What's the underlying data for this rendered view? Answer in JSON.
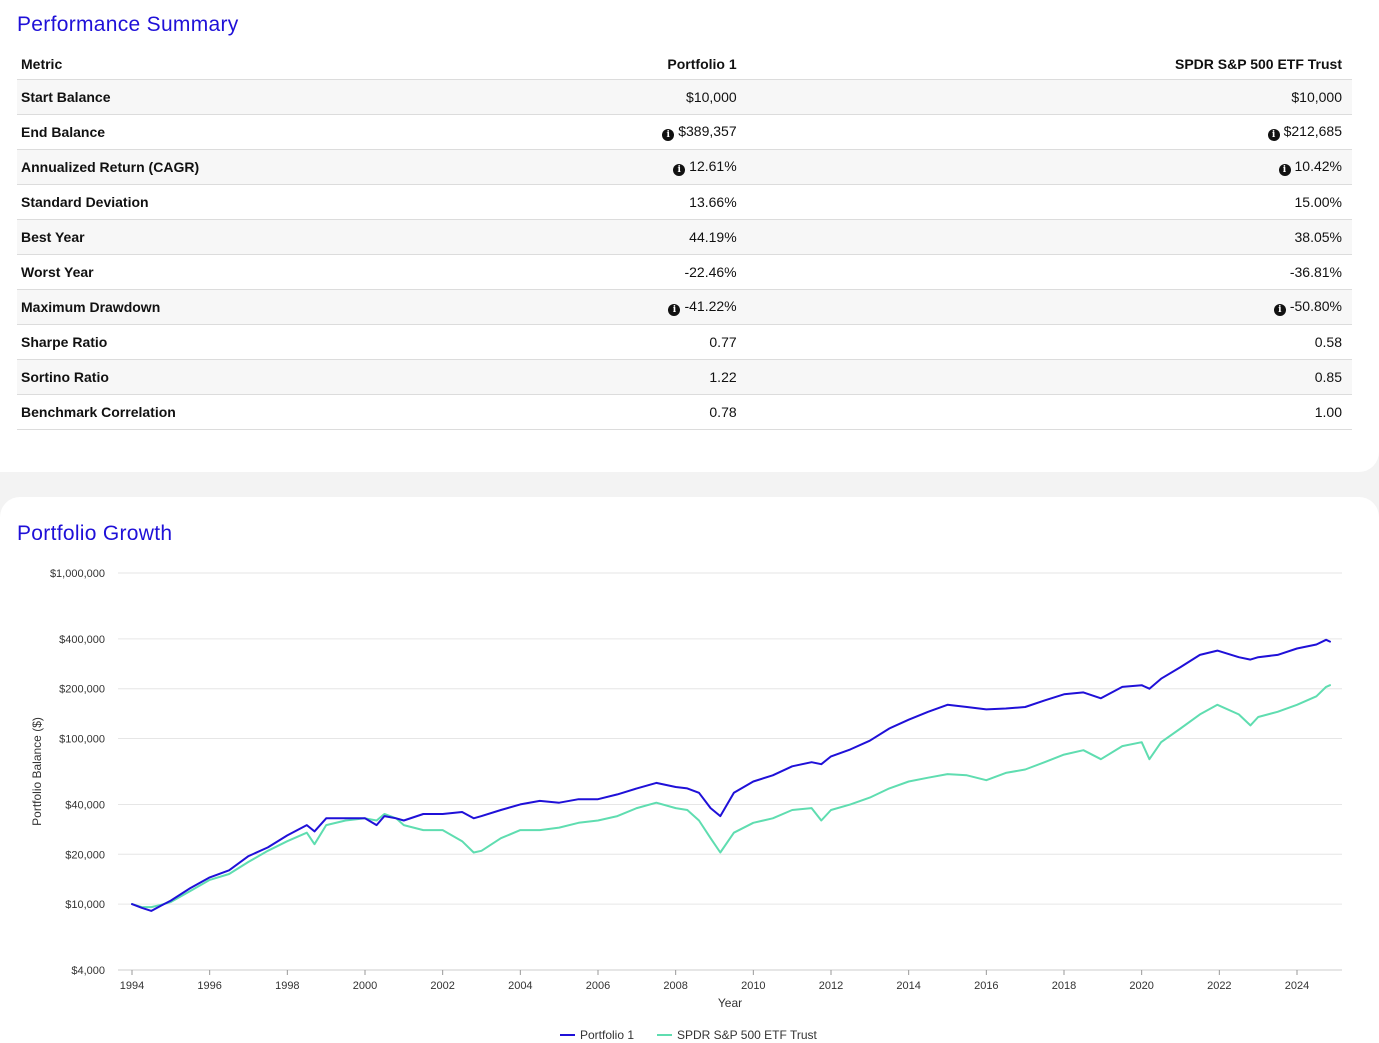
{
  "summary": {
    "title": "Performance Summary",
    "headers": [
      "Metric",
      "Portfolio 1",
      "SPDR S&P 500 ETF Trust"
    ],
    "rows": [
      {
        "metric": "Start Balance",
        "p1": "$10,000",
        "p1_info": false,
        "spy": "$10,000",
        "spy_info": false
      },
      {
        "metric": "End Balance",
        "p1": "$389,357",
        "p1_info": true,
        "spy": "$212,685",
        "spy_info": true
      },
      {
        "metric": "Annualized Return (CAGR)",
        "p1": "12.61%",
        "p1_info": true,
        "spy": "10.42%",
        "spy_info": true
      },
      {
        "metric": "Standard Deviation",
        "p1": "13.66%",
        "p1_info": false,
        "spy": "15.00%",
        "spy_info": false
      },
      {
        "metric": "Best Year",
        "p1": "44.19%",
        "p1_info": false,
        "spy": "38.05%",
        "spy_info": false
      },
      {
        "metric": "Worst Year",
        "p1": "-22.46%",
        "p1_info": false,
        "spy": "-36.81%",
        "spy_info": false
      },
      {
        "metric": "Maximum Drawdown",
        "p1": "-41.22%",
        "p1_info": true,
        "spy": "-50.80%",
        "spy_info": true
      },
      {
        "metric": "Sharpe Ratio",
        "p1": "0.77",
        "p1_info": false,
        "spy": "0.58",
        "spy_info": false
      },
      {
        "metric": "Sortino Ratio",
        "p1": "1.22",
        "p1_info": false,
        "spy": "0.85",
        "spy_info": false
      },
      {
        "metric": "Benchmark Correlation",
        "p1": "0.78",
        "p1_info": false,
        "spy": "1.00",
        "spy_info": false
      }
    ]
  },
  "growth": {
    "title": "Portfolio Growth"
  },
  "chart_data": {
    "type": "line",
    "title": "Portfolio Growth",
    "xlabel": "Year",
    "ylabel": "Portfolio Balance ($)",
    "y_scale": "log",
    "ylim": [
      4000,
      1000000
    ],
    "xlim": [
      1994,
      2025
    ],
    "y_ticks": [
      {
        "value": 1000000,
        "label": "$1,000,000"
      },
      {
        "value": 400000,
        "label": "$400,000"
      },
      {
        "value": 200000,
        "label": "$200,000"
      },
      {
        "value": 100000,
        "label": "$100,000"
      },
      {
        "value": 40000,
        "label": "$40,000"
      },
      {
        "value": 20000,
        "label": "$20,000"
      },
      {
        "value": 10000,
        "label": "$10,000"
      },
      {
        "value": 4000,
        "label": "$4,000"
      }
    ],
    "x_ticks": [
      "1994",
      "1996",
      "1998",
      "2000",
      "2002",
      "2004",
      "2006",
      "2008",
      "2010",
      "2012",
      "2014",
      "2016",
      "2018",
      "2020",
      "2022",
      "2024"
    ],
    "grid": true,
    "legend_position": "bottom-center",
    "series": [
      {
        "name": "Portfolio 1",
        "color": "#1f10d8",
        "x": [
          1994.0,
          1994.25,
          1994.5,
          1994.75,
          1995.0,
          1995.5,
          1996.0,
          1996.5,
          1997.0,
          1997.5,
          1998.0,
          1998.5,
          1998.7,
          1999.0,
          1999.5,
          2000.0,
          2000.3,
          2000.5,
          2000.8,
          2001.0,
          2001.5,
          2002.0,
          2002.5,
          2002.8,
          2003.0,
          2003.5,
          2004.0,
          2004.5,
          2005.0,
          2005.5,
          2006.0,
          2006.5,
          2007.0,
          2007.5,
          2008.0,
          2008.3,
          2008.6,
          2008.9,
          2009.15,
          2009.5,
          2010.0,
          2010.5,
          2011.0,
          2011.5,
          2011.75,
          2012.0,
          2012.5,
          2013.0,
          2013.5,
          2014.0,
          2014.5,
          2015.0,
          2015.5,
          2016.0,
          2016.5,
          2017.0,
          2017.5,
          2018.0,
          2018.5,
          2018.95,
          2019.5,
          2020.0,
          2020.2,
          2020.5,
          2021.0,
          2021.5,
          2021.95,
          2022.5,
          2022.8,
          2023.0,
          2023.5,
          2024.0,
          2024.5,
          2024.75,
          2024.85
        ],
        "values": [
          10000,
          9500,
          9100,
          9800,
          10500,
          12500,
          14500,
          16000,
          19500,
          22000,
          26000,
          30000,
          27500,
          33000,
          33000,
          33000,
          30000,
          34000,
          33000,
          32000,
          35000,
          35000,
          36000,
          33000,
          34000,
          37000,
          40000,
          42000,
          41000,
          43000,
          43000,
          46000,
          50000,
          54000,
          51000,
          50000,
          47000,
          38000,
          34000,
          47000,
          55000,
          60000,
          68000,
          72000,
          70000,
          78000,
          86000,
          97000,
          115000,
          130000,
          145000,
          160000,
          155000,
          150000,
          152000,
          155000,
          170000,
          185000,
          190000,
          175000,
          205000,
          210000,
          200000,
          230000,
          270000,
          320000,
          340000,
          310000,
          300000,
          310000,
          320000,
          350000,
          370000,
          395000,
          385000
        ]
      },
      {
        "name": "SPDR S&P 500 ETF Trust",
        "color": "#5fddb0",
        "x": [
          1994.0,
          1994.25,
          1994.5,
          1994.75,
          1995.0,
          1995.5,
          1996.0,
          1996.5,
          1997.0,
          1997.5,
          1998.0,
          1998.5,
          1998.7,
          1999.0,
          1999.5,
          2000.0,
          2000.3,
          2000.5,
          2000.8,
          2001.0,
          2001.5,
          2002.0,
          2002.5,
          2002.8,
          2003.0,
          2003.5,
          2004.0,
          2004.5,
          2005.0,
          2005.5,
          2006.0,
          2006.5,
          2007.0,
          2007.5,
          2008.0,
          2008.3,
          2008.6,
          2008.9,
          2009.15,
          2009.5,
          2010.0,
          2010.5,
          2011.0,
          2011.5,
          2011.75,
          2012.0,
          2012.5,
          2013.0,
          2013.5,
          2014.0,
          2014.5,
          2015.0,
          2015.5,
          2016.0,
          2016.5,
          2017.0,
          2017.5,
          2018.0,
          2018.5,
          2018.95,
          2019.5,
          2020.0,
          2020.2,
          2020.5,
          2021.0,
          2021.5,
          2021.95,
          2022.5,
          2022.8,
          2023.0,
          2023.5,
          2024.0,
          2024.5,
          2024.75,
          2024.85
        ],
        "values": [
          10000,
          9600,
          9600,
          9900,
          10300,
          12000,
          14000,
          15200,
          18000,
          21000,
          24000,
          27000,
          23000,
          30000,
          32000,
          33000,
          32000,
          35000,
          33000,
          30000,
          28000,
          28000,
          24000,
          20500,
          21000,
          25000,
          28000,
          28000,
          29000,
          31000,
          32000,
          34000,
          38000,
          41000,
          38000,
          37000,
          32000,
          25000,
          20500,
          27000,
          31000,
          33000,
          37000,
          38000,
          32000,
          37000,
          40000,
          44000,
          50000,
          55000,
          58000,
          61000,
          60000,
          56000,
          62000,
          65000,
          72000,
          80000,
          85000,
          75000,
          90000,
          95000,
          75000,
          95000,
          115000,
          140000,
          160000,
          140000,
          120000,
          135000,
          145000,
          160000,
          180000,
          205000,
          210000
        ]
      }
    ]
  }
}
